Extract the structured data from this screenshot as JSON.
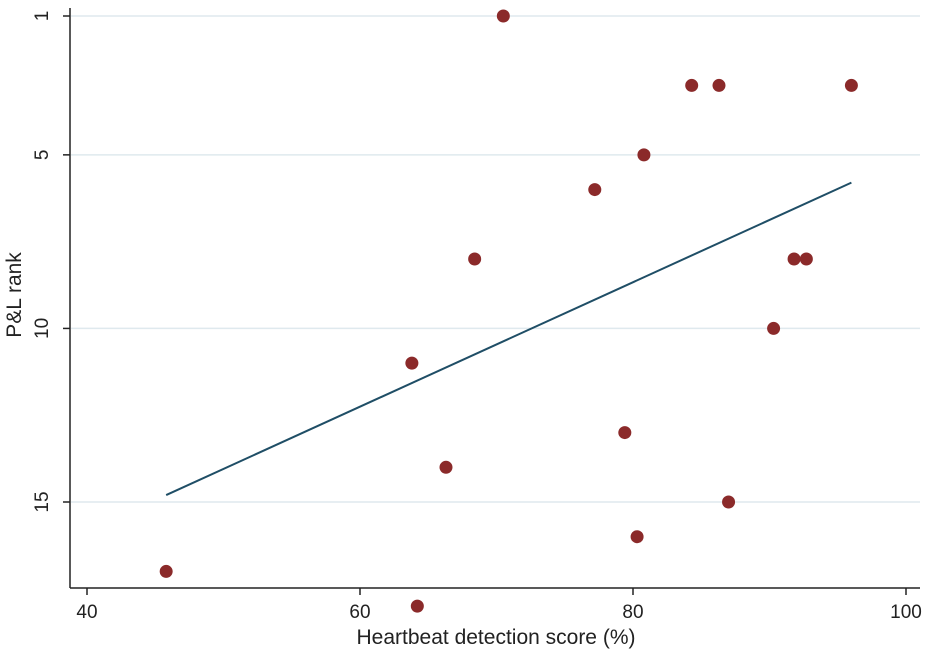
{
  "chart_data": {
    "type": "scatter",
    "title": "",
    "xlabel": "Heartbeat detection score (%)",
    "ylabel": "P&L rank",
    "xlim": [
      40,
      100
    ],
    "ylim": [
      17,
      1
    ],
    "y_reversed": true,
    "x_ticks": [
      "40",
      "60",
      "80",
      "100"
    ],
    "y_ticks": [
      "1",
      "5",
      "10",
      "15"
    ],
    "grid": "horizontal",
    "points": [
      {
        "x": 70.5,
        "y": 1
      },
      {
        "x": 84.3,
        "y": 3
      },
      {
        "x": 86.3,
        "y": 3
      },
      {
        "x": 96.0,
        "y": 3
      },
      {
        "x": 80.8,
        "y": 5
      },
      {
        "x": 77.2,
        "y": 6
      },
      {
        "x": 68.4,
        "y": 8
      },
      {
        "x": 91.8,
        "y": 8
      },
      {
        "x": 92.7,
        "y": 8
      },
      {
        "x": 90.3,
        "y": 10
      },
      {
        "x": 63.8,
        "y": 11
      },
      {
        "x": 79.4,
        "y": 13
      },
      {
        "x": 66.3,
        "y": 14
      },
      {
        "x": 87.0,
        "y": 15
      },
      {
        "x": 80.3,
        "y": 16
      },
      {
        "x": 45.8,
        "y": 17
      },
      {
        "x": 64.2,
        "y": 18
      }
    ],
    "fit_line": {
      "x": [
        45.8,
        96.0
      ],
      "y": [
        14.8,
        5.8
      ]
    },
    "colors": {
      "points": "#8b2a2a",
      "fit_line": "#1f4e66",
      "grid": "#dfe9ee",
      "axis": "#222222"
    }
  }
}
